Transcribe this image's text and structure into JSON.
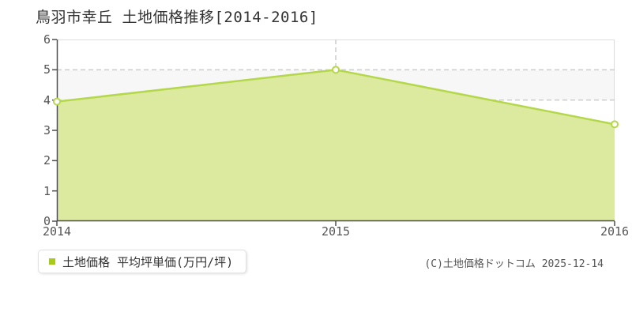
{
  "chart_data": {
    "type": "area",
    "title": "鳥羽市幸丘 土地価格推移[2014-2016]",
    "x": [
      2014,
      2015,
      2016
    ],
    "x_tick_labels": [
      "2014",
      "2015",
      "2016"
    ],
    "y_ticks": [
      "0",
      "1",
      "2",
      "3",
      "4",
      "5",
      "6"
    ],
    "ylim": [
      0,
      6
    ],
    "xlabel": "",
    "ylabel": "",
    "grid": "horizontal dashed lines at each integer, vertical dashed line at 2015",
    "legend_position": "bottom-left below chart",
    "series": [
      {
        "name": "土地価格 平均坪単価(万円/坪)",
        "values": [
          3.95,
          5.0,
          3.2
        ],
        "line_color": "#b4d74b",
        "fill_color": "#dcea9f",
        "marker": "circle, white fill, green stroke"
      }
    ],
    "colors": {
      "grid": "#cccccc",
      "axis": "#4d4d4d",
      "plot_border": "#dddddd",
      "band": "#f7f7f7",
      "tick_text": "#555555"
    }
  },
  "legend": {
    "bullet_color": "#a8ca1c",
    "label": "土地価格 平均坪単価(万円/坪)"
  },
  "footer": {
    "copyright": "(C)土地価格ドットコム 2025-12-14"
  }
}
